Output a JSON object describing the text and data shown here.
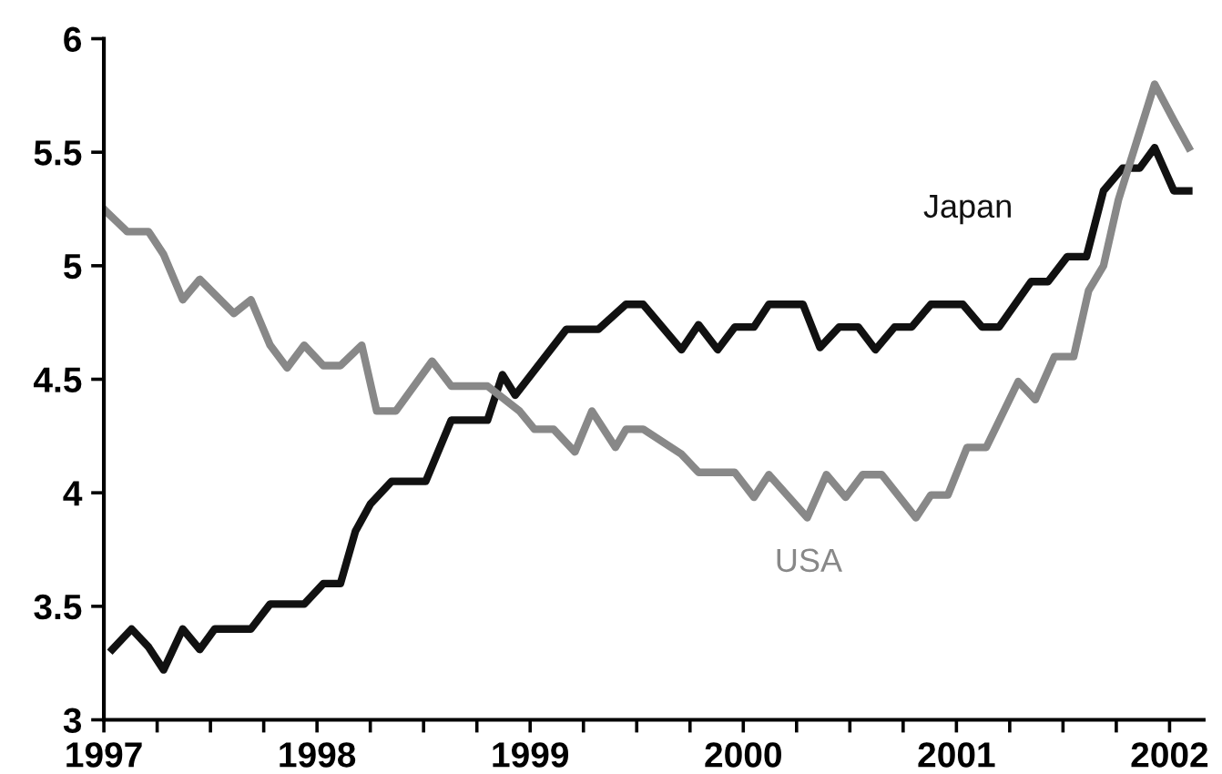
{
  "chart_data": {
    "type": "line",
    "xlim": [
      1997,
      2002.16
    ],
    "ylim": [
      3,
      6
    ],
    "xticks": [
      1997,
      {
        "value": 1997.25,
        "label": null
      },
      {
        "value": 1997.5,
        "label": null
      },
      {
        "value": 1997.75,
        "label": null
      },
      1998,
      {
        "value": 1998.25,
        "label": null
      },
      {
        "value": 1998.5,
        "label": null
      },
      {
        "value": 1998.75,
        "label": null
      },
      1999,
      {
        "value": 1999.25,
        "label": null
      },
      {
        "value": 1999.5,
        "label": null
      },
      {
        "value": 1999.75,
        "label": null
      },
      2000,
      {
        "value": 2000.25,
        "label": null
      },
      {
        "value": 2000.5,
        "label": null
      },
      {
        "value": 2000.75,
        "label": null
      },
      2001,
      {
        "value": 2001.25,
        "label": null
      },
      {
        "value": 2001.5,
        "label": null
      },
      {
        "value": 2001.75,
        "label": null
      },
      2002
    ],
    "yticks": [
      3,
      3.5,
      4,
      4.5,
      5,
      5.5,
      6
    ],
    "grid": false,
    "legend": false,
    "marker": "none",
    "line_style": "solid",
    "series": [
      {
        "name": "Japan",
        "color": "#111111",
        "x": [
          1997.04,
          1997.13,
          1997.21,
          1997.28,
          1997.37,
          1997.45,
          1997.52,
          1997.69,
          1997.78,
          1997.94,
          1998.03,
          1998.11,
          1998.18,
          1998.25,
          1998.35,
          1998.51,
          1998.63,
          1998.8,
          1998.87,
          1998.93,
          1999.17,
          1999.32,
          1999.45,
          1999.53,
          1999.71,
          1999.79,
          1999.88,
          1999.96,
          2000.05,
          2000.12,
          2000.28,
          2000.36,
          2000.45,
          2000.54,
          2000.62,
          2000.71,
          2000.79,
          2000.88,
          2001.03,
          2001.12,
          2001.2,
          2001.35,
          2001.43,
          2001.52,
          2001.61,
          2001.69,
          2001.78,
          2001.86,
          2001.93,
          2002.02,
          2002.09
        ],
        "values": [
          3.31,
          3.4,
          3.32,
          3.22,
          3.4,
          3.31,
          3.4,
          3.4,
          3.51,
          3.51,
          3.6,
          3.6,
          3.83,
          3.95,
          4.05,
          4.05,
          4.32,
          4.32,
          4.52,
          4.43,
          4.72,
          4.72,
          4.83,
          4.83,
          4.63,
          4.74,
          4.63,
          4.73,
          4.73,
          4.83,
          4.83,
          4.64,
          4.73,
          4.73,
          4.63,
          4.73,
          4.73,
          4.83,
          4.83,
          4.73,
          4.73,
          4.93,
          4.93,
          5.04,
          5.04,
          5.33,
          5.43,
          5.43,
          5.52,
          5.33,
          5.33
        ]
      },
      {
        "name": "USA",
        "color": "#888888",
        "x": [
          1997.01,
          1997.11,
          1997.21,
          1997.28,
          1997.37,
          1997.45,
          1997.61,
          1997.69,
          1997.78,
          1997.86,
          1997.94,
          1998.03,
          1998.11,
          1998.21,
          1998.28,
          1998.37,
          1998.54,
          1998.63,
          1998.8,
          1998.95,
          1999.02,
          1999.11,
          1999.21,
          1999.29,
          1999.4,
          1999.45,
          1999.53,
          1999.71,
          1999.79,
          1999.96,
          2000.05,
          2000.12,
          2000.3,
          2000.39,
          2000.48,
          2000.56,
          2000.65,
          2000.81,
          2000.88,
          2000.96,
          2001.05,
          2001.14,
          2001.29,
          2001.37,
          2001.46,
          2001.55,
          2001.62,
          2001.69,
          2001.76,
          2001.93,
          2002.02,
          2002.09
        ],
        "values": [
          5.24,
          5.15,
          5.15,
          5.05,
          4.85,
          4.94,
          4.79,
          4.85,
          4.65,
          4.55,
          4.65,
          4.56,
          4.56,
          4.65,
          4.36,
          4.36,
          4.58,
          4.47,
          4.47,
          4.36,
          4.28,
          4.28,
          4.18,
          4.36,
          4.2,
          4.28,
          4.28,
          4.17,
          4.09,
          4.09,
          3.98,
          4.08,
          3.89,
          4.08,
          3.98,
          4.08,
          4.08,
          3.89,
          3.99,
          3.99,
          4.2,
          4.2,
          4.49,
          4.41,
          4.6,
          4.6,
          4.89,
          5.0,
          5.29,
          5.8,
          5.64,
          5.52
        ]
      }
    ]
  }
}
